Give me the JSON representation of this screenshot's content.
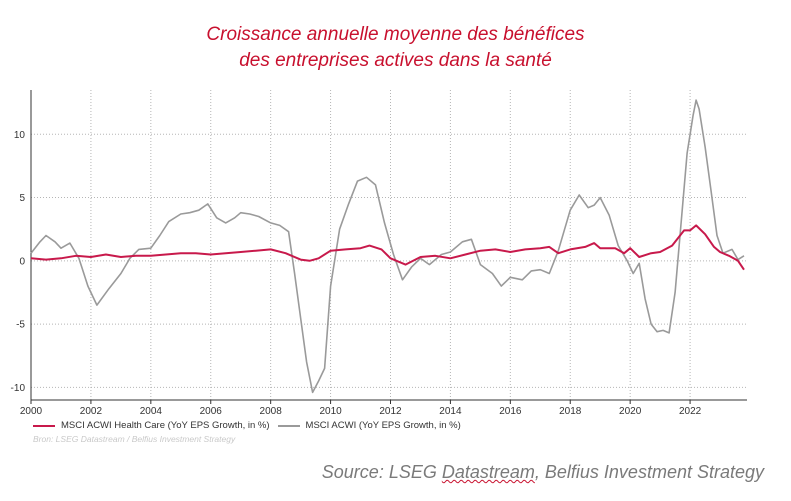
{
  "chart_data": {
    "type": "line",
    "title": "Croissance annuelle moyenne des bénéfices",
    "subtitle": "des entreprises actives dans la santé",
    "xlabel": "",
    "ylabel": "",
    "xlim": [
      2000,
      2023.9
    ],
    "ylim": [
      -11,
      13.5
    ],
    "x_ticks": [
      2000,
      2002,
      2004,
      2006,
      2008,
      2010,
      2012,
      2014,
      2016,
      2018,
      2020,
      2022
    ],
    "y_ticks": [
      10,
      5,
      0,
      -5,
      -10
    ],
    "grid": true,
    "legend_position": "bottom-left",
    "series": [
      {
        "name": "MSCI ACWI Health Care (YoY EPS Growth, in %)",
        "color": "#c8194b",
        "points": [
          [
            2000,
            0.2
          ],
          [
            2000.5,
            0.1
          ],
          [
            2001,
            0.2
          ],
          [
            2001.5,
            0.4
          ],
          [
            2002,
            0.3
          ],
          [
            2002.5,
            0.5
          ],
          [
            2003,
            0.3
          ],
          [
            2003.5,
            0.4
          ],
          [
            2004,
            0.4
          ],
          [
            2004.5,
            0.5
          ],
          [
            2005,
            0.6
          ],
          [
            2005.5,
            0.6
          ],
          [
            2006,
            0.5
          ],
          [
            2006.5,
            0.6
          ],
          [
            2007,
            0.7
          ],
          [
            2007.5,
            0.8
          ],
          [
            2008,
            0.9
          ],
          [
            2008.5,
            0.6
          ],
          [
            2009,
            0.1
          ],
          [
            2009.3,
            0.0
          ],
          [
            2009.6,
            0.2
          ],
          [
            2010,
            0.8
          ],
          [
            2010.5,
            0.9
          ],
          [
            2011,
            1.0
          ],
          [
            2011.3,
            1.2
          ],
          [
            2011.7,
            0.9
          ],
          [
            2012,
            0.2
          ],
          [
            2012.5,
            -0.3
          ],
          [
            2013,
            0.3
          ],
          [
            2013.5,
            0.4
          ],
          [
            2014,
            0.2
          ],
          [
            2014.5,
            0.5
          ],
          [
            2015,
            0.8
          ],
          [
            2015.5,
            0.9
          ],
          [
            2016,
            0.7
          ],
          [
            2016.5,
            0.9
          ],
          [
            2017,
            1.0
          ],
          [
            2017.3,
            1.1
          ],
          [
            2017.6,
            0.6
          ],
          [
            2018,
            0.9
          ],
          [
            2018.5,
            1.1
          ],
          [
            2018.8,
            1.4
          ],
          [
            2019,
            1.0
          ],
          [
            2019.5,
            1.0
          ],
          [
            2019.8,
            0.6
          ],
          [
            2020,
            1.0
          ],
          [
            2020.3,
            0.3
          ],
          [
            2020.7,
            0.6
          ],
          [
            2021,
            0.7
          ],
          [
            2021.4,
            1.2
          ],
          [
            2021.8,
            2.4
          ],
          [
            2022,
            2.4
          ],
          [
            2022.2,
            2.8
          ],
          [
            2022.5,
            2.1
          ],
          [
            2022.8,
            1.1
          ],
          [
            2023,
            0.7
          ],
          [
            2023.3,
            0.4
          ],
          [
            2023.6,
            0.0
          ],
          [
            2023.8,
            -0.7
          ]
        ]
      },
      {
        "name": "MSCI ACWI (YoY EPS Growth, in %)",
        "color": "#9a9a9a",
        "points": [
          [
            2000,
            0.6
          ],
          [
            2000.3,
            1.5
          ],
          [
            2000.5,
            2.0
          ],
          [
            2000.8,
            1.5
          ],
          [
            2001,
            1.0
          ],
          [
            2001.3,
            1.4
          ],
          [
            2001.6,
            0.2
          ],
          [
            2001.9,
            -2.0
          ],
          [
            2002.2,
            -3.5
          ],
          [
            2002.6,
            -2.2
          ],
          [
            2003,
            -1.0
          ],
          [
            2003.3,
            0.2
          ],
          [
            2003.6,
            0.9
          ],
          [
            2004,
            1.0
          ],
          [
            2004.3,
            2.0
          ],
          [
            2004.6,
            3.1
          ],
          [
            2005,
            3.7
          ],
          [
            2005.3,
            3.8
          ],
          [
            2005.6,
            4.0
          ],
          [
            2005.9,
            4.5
          ],
          [
            2006.2,
            3.4
          ],
          [
            2006.5,
            3.0
          ],
          [
            2006.8,
            3.4
          ],
          [
            2007,
            3.8
          ],
          [
            2007.3,
            3.7
          ],
          [
            2007.6,
            3.5
          ],
          [
            2008,
            3.0
          ],
          [
            2008.3,
            2.8
          ],
          [
            2008.6,
            2.3
          ],
          [
            2008.8,
            -1.0
          ],
          [
            2009,
            -4.5
          ],
          [
            2009.2,
            -8.0
          ],
          [
            2009.4,
            -10.4
          ],
          [
            2009.6,
            -9.5
          ],
          [
            2009.8,
            -8.5
          ],
          [
            2010,
            -2.0
          ],
          [
            2010.3,
            2.5
          ],
          [
            2010.6,
            4.5
          ],
          [
            2010.9,
            6.3
          ],
          [
            2011.2,
            6.6
          ],
          [
            2011.5,
            6.0
          ],
          [
            2011.8,
            3.0
          ],
          [
            2012.1,
            0.5
          ],
          [
            2012.4,
            -1.5
          ],
          [
            2012.7,
            -0.5
          ],
          [
            2013,
            0.2
          ],
          [
            2013.3,
            -0.3
          ],
          [
            2013.7,
            0.5
          ],
          [
            2014,
            0.7
          ],
          [
            2014.4,
            1.5
          ],
          [
            2014.7,
            1.7
          ],
          [
            2015,
            -0.3
          ],
          [
            2015.4,
            -1.0
          ],
          [
            2015.7,
            -2.0
          ],
          [
            2016,
            -1.3
          ],
          [
            2016.4,
            -1.5
          ],
          [
            2016.7,
            -0.8
          ],
          [
            2017,
            -0.7
          ],
          [
            2017.3,
            -1.0
          ],
          [
            2017.6,
            0.8
          ],
          [
            2018,
            4.0
          ],
          [
            2018.3,
            5.2
          ],
          [
            2018.6,
            4.2
          ],
          [
            2018.8,
            4.4
          ],
          [
            2019,
            5.0
          ],
          [
            2019.3,
            3.6
          ],
          [
            2019.6,
            1.2
          ],
          [
            2019.9,
            0.0
          ],
          [
            2020.1,
            -1.0
          ],
          [
            2020.3,
            -0.2
          ],
          [
            2020.5,
            -3.0
          ],
          [
            2020.7,
            -5.0
          ],
          [
            2020.9,
            -5.6
          ],
          [
            2021.1,
            -5.5
          ],
          [
            2021.3,
            -5.7
          ],
          [
            2021.5,
            -2.5
          ],
          [
            2021.7,
            3.0
          ],
          [
            2021.9,
            8.5
          ],
          [
            2022.1,
            11.5
          ],
          [
            2022.2,
            12.7
          ],
          [
            2022.3,
            12.0
          ],
          [
            2022.5,
            9.0
          ],
          [
            2022.7,
            5.5
          ],
          [
            2022.9,
            2.0
          ],
          [
            2023.1,
            0.6
          ],
          [
            2023.4,
            0.9
          ],
          [
            2023.6,
            0.1
          ],
          [
            2023.8,
            0.4
          ]
        ]
      }
    ]
  },
  "legend": {
    "series1_label": "MSCI ACWI Health Care (YoY EPS Growth, in %)",
    "series2_label": "MSCI ACWI (YoY EPS Growth, in %)"
  },
  "footer": {
    "small_source": "Bron: LSEG Datastream / Belfius Investment Strategy",
    "source_prefix": "Source: LSEG ",
    "source_underlined": "Datastream",
    "source_suffix": ", Belfius Investment Strategy"
  }
}
